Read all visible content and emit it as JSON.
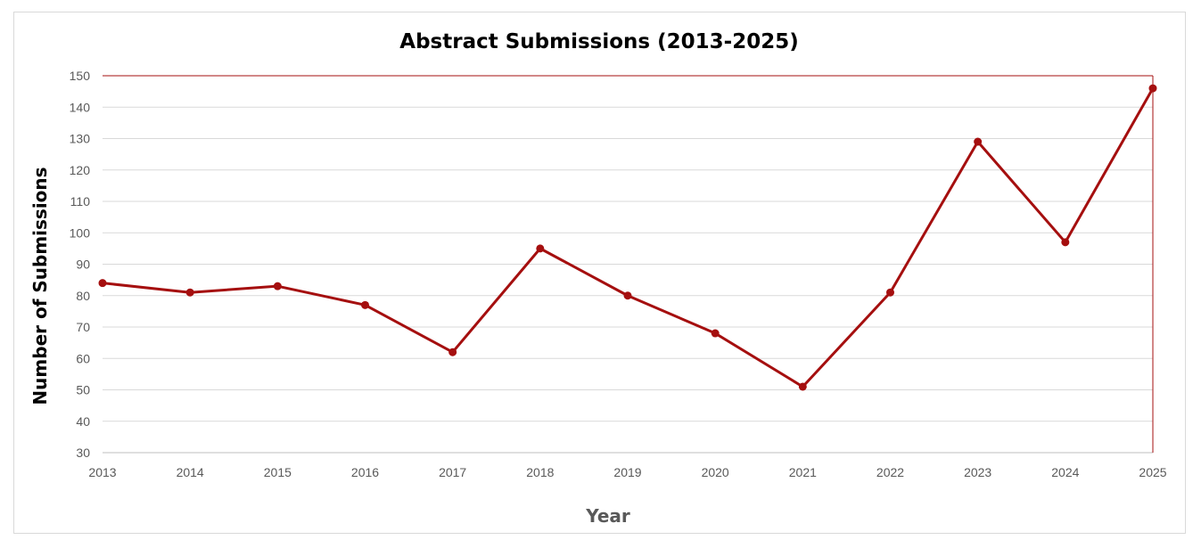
{
  "chart_data": {
    "type": "line",
    "title": "Abstract Submissions (2013-2025)",
    "xlabel": "Year",
    "ylabel": "Number of Submissions",
    "x": [
      "2013",
      "2014",
      "2015",
      "2016",
      "2017",
      "2018",
      "2019",
      "2020",
      "2021",
      "2022",
      "2023",
      "2024",
      "2025"
    ],
    "series": [
      {
        "values": [
          84,
          81,
          83,
          77,
          62,
          95,
          80,
          68,
          51,
          81,
          129,
          97,
          146
        ],
        "color": "#a50f0f"
      }
    ],
    "ylim": [
      30,
      150
    ],
    "yticks": [
      30,
      40,
      50,
      60,
      70,
      80,
      90,
      100,
      110,
      120,
      130,
      140,
      150
    ],
    "grid": true,
    "legend": "none"
  }
}
